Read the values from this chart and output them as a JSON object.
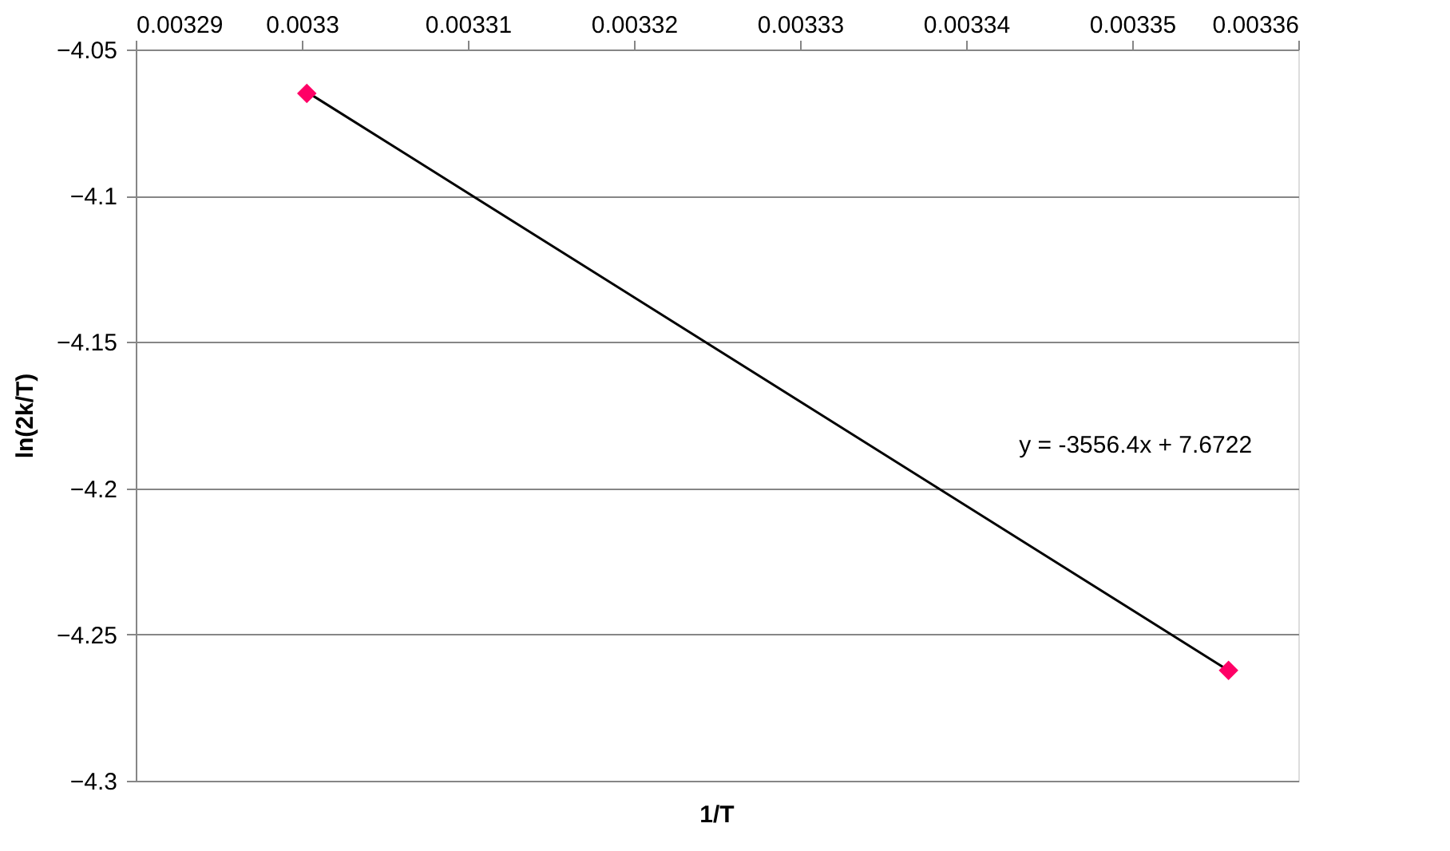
{
  "chart_data": {
    "type": "scatter",
    "xlabel": "1/T",
    "ylabel": "ln(2k/T)",
    "xlim": [
      0.00329,
      0.00336
    ],
    "xticks": [
      0.00329,
      0.0033,
      0.00331,
      0.00332,
      0.00333,
      0.00334,
      0.00335,
      0.00336
    ],
    "ylim": [
      -4.3,
      -4.05
    ],
    "yticks": [
      -4.3,
      -4.25,
      -4.2,
      -4.15,
      -4.1,
      -4.05
    ],
    "grid": "y",
    "x": [
      0.0033003,
      0.0033558
    ],
    "series": [
      {
        "color": "#ff0066",
        "marker": "diamond",
        "values": [
          -4.065,
          -4.2623
        ]
      },
      {
        "type": "line",
        "color": "#000000",
        "line_style": "solid",
        "x": [
          0.0033003,
          0.0033558
        ],
        "values": [
          -4.0645,
          -4.2623
        ]
      }
    ],
    "annotations": [
      "y = -3556.4x + 7.6722"
    ]
  }
}
